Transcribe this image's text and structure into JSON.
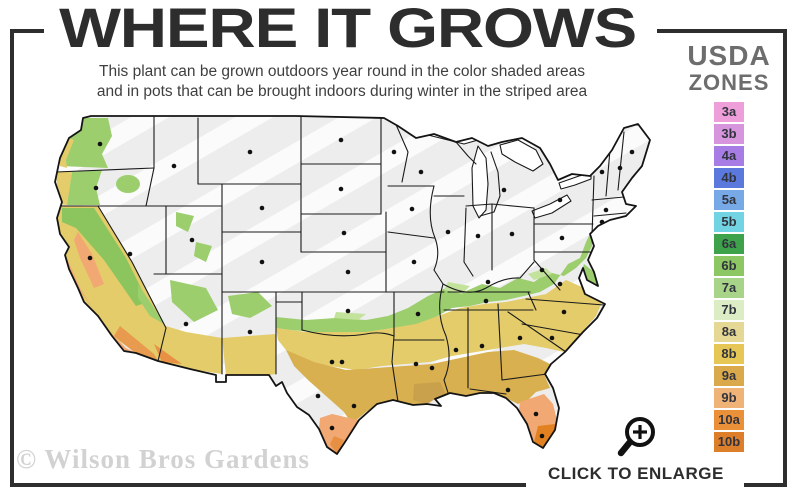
{
  "header": {
    "title": "WHERE IT GROWS",
    "subtitle_line1": "This plant can be grown outdoors year round in the color shaded areas",
    "subtitle_line2": "and in pots that can be brought indoors during winter in the striped area"
  },
  "legend": {
    "title_line1": "USDA",
    "title_line2": "ZONES",
    "zones": [
      {
        "label": "3a",
        "color": "#ee9fd9"
      },
      {
        "label": "3b",
        "color": "#d795de"
      },
      {
        "label": "4a",
        "color": "#a77de5"
      },
      {
        "label": "4b",
        "color": "#5b79dd"
      },
      {
        "label": "5a",
        "color": "#77a9e6"
      },
      {
        "label": "5b",
        "color": "#72d3e2"
      },
      {
        "label": "6a",
        "color": "#3ea24b"
      },
      {
        "label": "6b",
        "color": "#8dc763"
      },
      {
        "label": "7a",
        "color": "#a8d489"
      },
      {
        "label": "7b",
        "color": "#dcedc5"
      },
      {
        "label": "8a",
        "color": "#e5d894"
      },
      {
        "label": "8b",
        "color": "#e6c654"
      },
      {
        "label": "9a",
        "color": "#d9a94c"
      },
      {
        "label": "9b",
        "color": "#efb277"
      },
      {
        "label": "10a",
        "color": "#ea9038"
      },
      {
        "label": "10b",
        "color": "#dd7e2b"
      }
    ]
  },
  "map": {
    "palette": {
      "striped_area_gray": "#ededed",
      "stripe_white": "#ffffff",
      "zone_green": "#9cce6e",
      "zone_light_green": "#c3e29c",
      "zone_yellow": "#e3cc69",
      "zone_gold": "#d8b050",
      "zone_salmon": "#f2a873",
      "zone_orange": "#e89043",
      "zone_dark_orange": "#dd7c22",
      "state_border": "#1a1a1a",
      "city_dot": "#111111"
    }
  },
  "footer": {
    "watermark": "© Wilson Bros Gardens",
    "enlarge_label": "CLICK TO ENLARGE"
  }
}
